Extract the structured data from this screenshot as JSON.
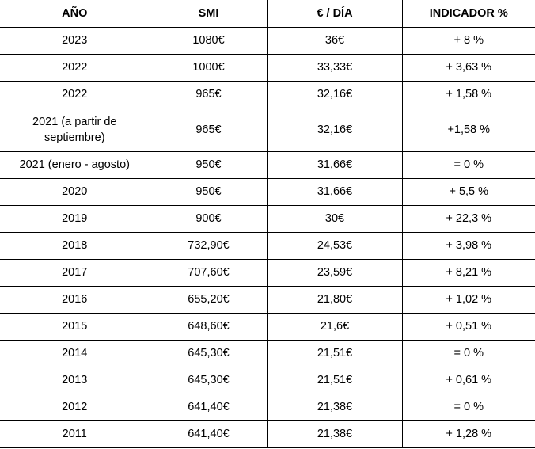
{
  "table": {
    "headers": [
      "AÑO",
      "SMI",
      "€ / DÍA",
      "INDICADOR %"
    ],
    "rows": [
      [
        "2023",
        "1080€",
        "36€",
        "+ 8 %"
      ],
      [
        "2022",
        "1000€",
        "33,33€",
        "+ 3,63 %"
      ],
      [
        "2022",
        "965€",
        "32,16€",
        "+ 1,58 %"
      ],
      [
        "2021 (a partir de septiembre)",
        "965€",
        "32,16€",
        "+1,58 %"
      ],
      [
        "2021 (enero - agosto)",
        "950€",
        "31,66€",
        "= 0 %"
      ],
      [
        "2020",
        "950€",
        "31,66€",
        "+ 5,5 %"
      ],
      [
        "2019",
        "900€",
        "30€",
        "+ 22,3 %"
      ],
      [
        "2018",
        "732,90€",
        "24,53€",
        "+ 3,98 %"
      ],
      [
        "2017",
        "707,60€",
        "23,59€",
        "+ 8,21 %"
      ],
      [
        "2016",
        "655,20€",
        "21,80€",
        "+ 1,02 %"
      ],
      [
        "2015",
        "648,60€",
        "21,6€",
        "+ 0,51 %"
      ],
      [
        "2014",
        "645,30€",
        "21,51€",
        "= 0 %"
      ],
      [
        "2013",
        "645,30€",
        "21,51€",
        "+ 0,61 %"
      ],
      [
        "2012",
        "641,40€",
        "21,38€",
        "= 0 %"
      ],
      [
        "2011",
        "641,40€",
        "21,38€",
        "+ 1,28 %"
      ]
    ]
  }
}
